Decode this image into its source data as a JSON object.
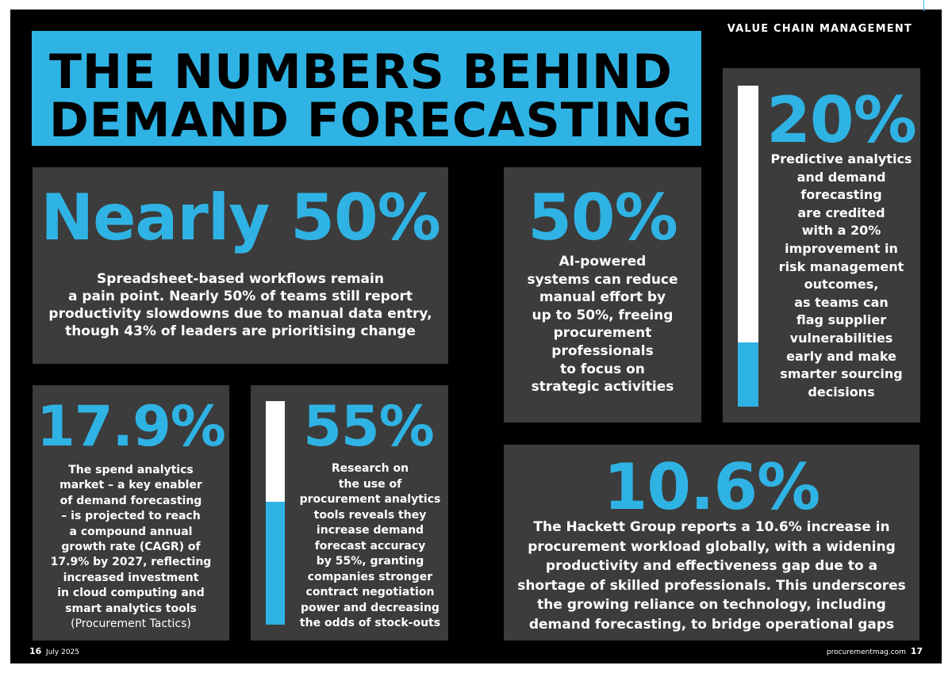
{
  "header": {
    "section": "VALUE CHAIN MANAGEMENT",
    "title_line1": "THE NUMBERS BEHIND",
    "title_line2": "DEMAND FORECASTING"
  },
  "stats": {
    "nearly50": {
      "figure": "Nearly 50%",
      "text": "Spreadsheet-based workflows remain\na pain point. Nearly 50% of teams still report\nproductivity slowdowns due to manual data entry,\nthough 43% of leaders are prioritising change"
    },
    "fifty": {
      "figure": "50%",
      "text": "AI-powered\nsystems can reduce\nmanual effort by\nup to 50%, freeing\nprocurement\nprofessionals\nto focus on\nstrategic activities"
    },
    "twenty": {
      "figure": "20%",
      "text": "Predictive analytics\nand demand\nforecasting\nare credited\nwith a 20%\nimprovement in\nrisk management\noutcomes,\nas teams can\nflag supplier\nvulnerabilities\nearly and make\nsmarter sourcing\ndecisions",
      "level": 0.2
    },
    "seventeen": {
      "figure": "17.9%",
      "text": "The spend analytics\nmarket – a key enabler\nof demand forecasting\n– is projected to reach\na compound annual\ngrowth rate (CAGR) of\n17.9% by 2027, reflecting\nincreased investment\nin cloud computing and\nsmart analytics tools",
      "source": "(Procurement Tactics)"
    },
    "fiftyfive": {
      "figure": "55%",
      "text": "Research on\nthe use of\nprocurement analytics\ntools reveals they\nincrease demand\nforecast accuracy\nby 55%, granting\ncompanies stronger\ncontract negotiation\npower and decreasing\nthe odds of stock-outs",
      "level": 0.55
    },
    "tenpointsix": {
      "figure": "10.6%",
      "text": "The Hackett Group reports a 10.6% increase in\nprocurement workload globally, with a widening\nproductivity and effectiveness gap due to a\nshortage of skilled professionals. This underscores\nthe growing reliance on technology, including\ndemand forecasting, to bridge operational gaps"
    }
  },
  "footer": {
    "left_page": "16",
    "left_date": "July 2025",
    "right_site": "procurementmag.com",
    "right_page": "17"
  },
  "colors": {
    "accent": "#2fb3e4",
    "card": "#3c3c3c",
    "background": "#000000"
  }
}
